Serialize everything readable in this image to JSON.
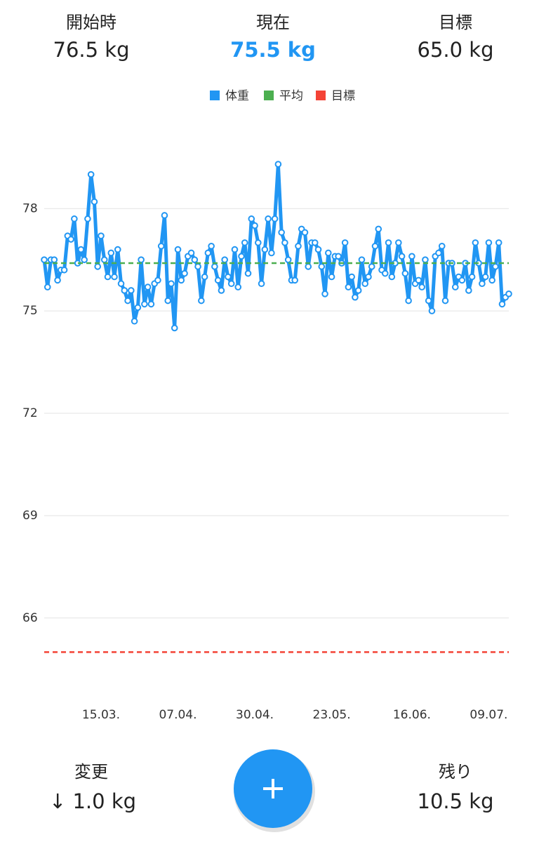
{
  "header": {
    "start": {
      "label": "開始時",
      "value": "76.5 kg"
    },
    "current": {
      "label": "現在",
      "value": "75.5 kg"
    },
    "target": {
      "label": "目標",
      "value": "65.0 kg"
    }
  },
  "chart_data": {
    "type": "line",
    "categories": [
      null,
      null,
      null,
      null,
      null,
      null,
      null,
      null,
      null,
      null,
      null,
      null,
      null,
      null,
      null,
      null,
      null,
      "15.03.",
      null,
      null,
      null,
      null,
      null,
      null,
      null,
      null,
      null,
      null,
      null,
      null,
      null,
      null,
      null,
      null,
      null,
      null,
      null,
      null,
      null,
      null,
      "07.04.",
      null,
      null,
      null,
      null,
      null,
      null,
      null,
      null,
      null,
      null,
      null,
      null,
      null,
      null,
      null,
      null,
      null,
      null,
      null,
      null,
      null,
      null,
      "30.04.",
      null,
      null,
      null,
      null,
      null,
      null,
      null,
      null,
      null,
      null,
      null,
      null,
      null,
      null,
      null,
      null,
      null,
      null,
      null,
      null,
      null,
      null,
      "23.05.",
      null,
      null,
      null,
      null,
      null,
      null,
      null,
      null,
      null,
      null,
      null,
      null,
      null,
      null,
      null,
      null,
      null,
      null,
      null,
      null,
      null,
      null,
      null,
      "16.06.",
      null,
      null,
      null,
      null,
      null,
      null,
      null,
      null,
      null,
      null,
      null,
      null,
      null,
      null,
      null,
      null,
      null,
      null,
      null,
      null,
      null,
      null,
      "09.07.",
      null,
      null,
      null,
      null,
      null,
      null
    ],
    "series": [
      {
        "name": "体重",
        "color": "#2196f3",
        "values": [
          76.5,
          75.7,
          76.5,
          76.5,
          75.9,
          76.2,
          76.2,
          77.2,
          77.1,
          77.7,
          76.4,
          76.8,
          76.5,
          77.7,
          79.0,
          78.2,
          76.3,
          77.2,
          76.5,
          76.0,
          76.7,
          76.0,
          76.8,
          75.8,
          75.6,
          75.3,
          75.6,
          74.7,
          75.1,
          76.5,
          75.2,
          75.7,
          75.2,
          75.8,
          75.9,
          76.9,
          77.8,
          75.3,
          75.8,
          74.5,
          76.8,
          75.9,
          76.1,
          76.6,
          76.7,
          76.5,
          76.3,
          75.3,
          76.0,
          76.7,
          76.9,
          76.3,
          75.9,
          75.6,
          76.5,
          76.0,
          75.8,
          76.8,
          75.7,
          76.6,
          77.0,
          76.1,
          77.7,
          77.5,
          77.0,
          75.8,
          76.8,
          77.7,
          76.7,
          77.7,
          79.3,
          77.3,
          77.0,
          76.5,
          75.9,
          75.9,
          76.9,
          77.4,
          77.3,
          76.3,
          77.0,
          77.0,
          76.8,
          76.3,
          75.5,
          76.7,
          76.0,
          76.6,
          76.6,
          76.4,
          77.0,
          75.7,
          76.0,
          75.4,
          75.6,
          76.5,
          75.8,
          76.0,
          76.3,
          76.9,
          77.4,
          76.2,
          76.1,
          77.0,
          76.0,
          76.4,
          77.0,
          76.6,
          76.1,
          75.3,
          76.6,
          75.8,
          75.9,
          75.7,
          76.5,
          75.3,
          75.0,
          76.6,
          76.7,
          76.9,
          75.3,
          76.4,
          76.4,
          75.7,
          76.0,
          75.9,
          76.4,
          75.6,
          76.0,
          77.0,
          76.4,
          75.8,
          76.0,
          77.0,
          75.9,
          76.3,
          77.0,
          75.2,
          75.4,
          75.5
        ]
      },
      {
        "name": "平均",
        "color": "#4caf50",
        "value": 76.4,
        "dashed": true
      },
      {
        "name": "目標",
        "color": "#f44336",
        "value": 65.0,
        "dashed": true
      }
    ],
    "ylim": [
      64,
      80
    ],
    "yticks": [
      66,
      69,
      72,
      75,
      78
    ],
    "grid": true
  },
  "footer": {
    "change": {
      "label": "変更",
      "value": "↓ 1.0 kg"
    },
    "remaining": {
      "label": "残り",
      "value": "10.5 kg"
    }
  }
}
